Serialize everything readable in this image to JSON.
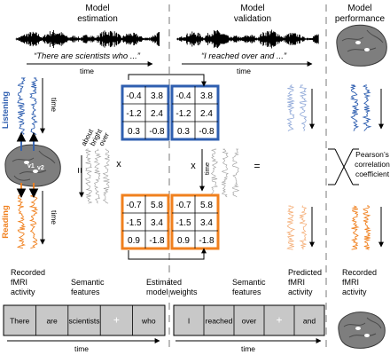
{
  "headers": {
    "estimation": [
      "Model",
      "estimation"
    ],
    "validation": [
      "Model",
      "validation"
    ],
    "performance": [
      "Model",
      "performance"
    ]
  },
  "quotes": {
    "estimation": "“There are scientists who ...”",
    "validation": "“I reached over and ...”"
  },
  "axis": {
    "time": "time",
    "x_sign": "x",
    "equals": "="
  },
  "modalities": {
    "listening": "Listening",
    "reading": "Reading"
  },
  "features_header": [
    "about",
    "bright",
    "over"
  ],
  "brain_labels": [
    "v1",
    "v2"
  ],
  "matrices": {
    "listening": [
      [
        "-0.4",
        "3.8"
      ],
      [
        "-1.2",
        "2.4"
      ],
      [
        "0.3",
        "-0.8"
      ]
    ],
    "reading": [
      [
        "-0.7",
        "5.8"
      ],
      [
        "-1.5",
        "3.4"
      ],
      [
        "0.9",
        "-1.8"
      ]
    ]
  },
  "pearson": [
    "Pearson’s",
    "correlation",
    "coefficient"
  ],
  "bottom_labels": {
    "recorded_left": [
      "Recorded",
      "fMRI",
      "activity"
    ],
    "semantic_left": [
      "Semantic",
      "features"
    ],
    "estimated": [
      "Estimated",
      "model weights"
    ],
    "semantic_right": [
      "Semantic",
      "features"
    ],
    "predicted": [
      "Predicted",
      "fMRI",
      "activity"
    ],
    "recorded_right": [
      "Recorded",
      "fMRI",
      "activity"
    ]
  },
  "word_strip_left": [
    "There",
    "are",
    "scientists",
    "+",
    "who"
  ],
  "word_strip_right": [
    "I",
    "reached",
    "over",
    "+",
    "and"
  ],
  "colors": {
    "listening": "#2f5fb0",
    "reading": "#f0801e",
    "listening_light": "#8fa8d8",
    "reading_light": "#f5b07a",
    "gray_trace": "#9a9a9a",
    "strip_bg": "#c8c8c8",
    "dashed": "#909090"
  }
}
